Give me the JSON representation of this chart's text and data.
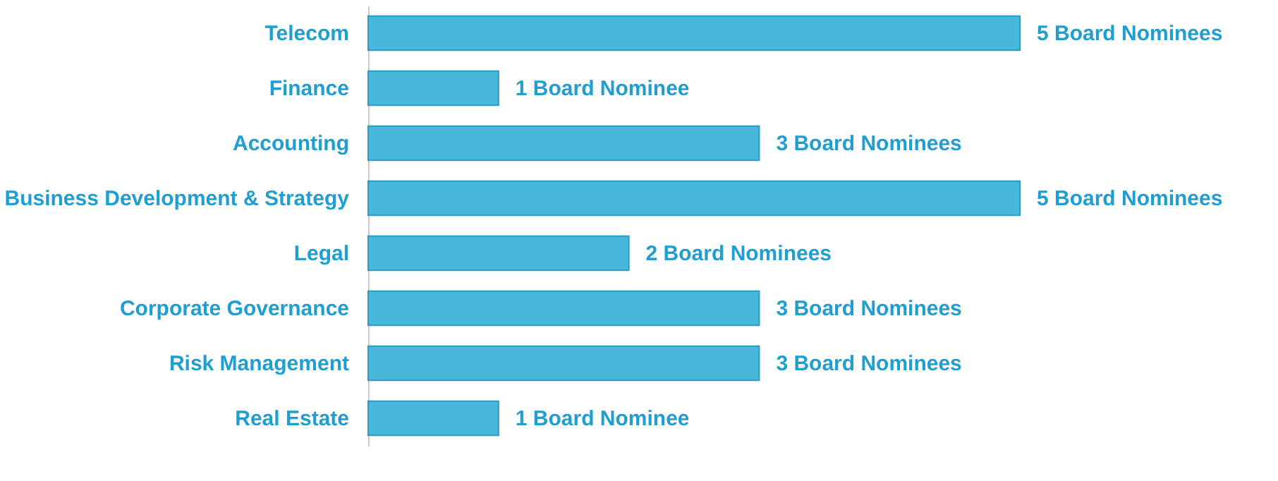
{
  "chart_data": {
    "type": "bar",
    "orientation": "horizontal",
    "categories": [
      "Telecom",
      "Finance",
      "Accounting",
      "Business Development & Strategy",
      "Legal",
      "Corporate Governance",
      "Risk Management",
      "Real Estate"
    ],
    "values": [
      5,
      1,
      3,
      5,
      2,
      3,
      3,
      1
    ],
    "value_labels": [
      "5 Board Nominees",
      "1 Board Nominee",
      "3 Board Nominees",
      "5 Board Nominees",
      "2 Board Nominees",
      "3 Board Nominees",
      "3 Board Nominees",
      "1 Board Nominee"
    ],
    "color": "#47b8dc",
    "grid": false,
    "tick_labels": "y"
  }
}
